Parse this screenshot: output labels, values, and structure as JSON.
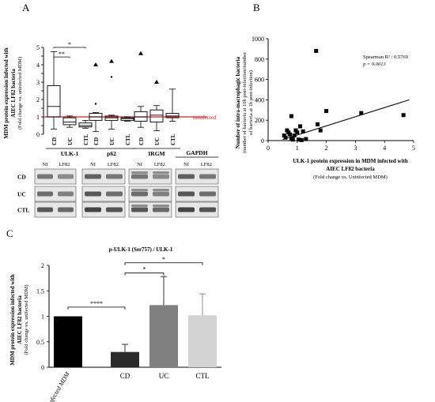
{
  "panels": {
    "a": "A",
    "b": "B",
    "c": "C"
  },
  "colors": {
    "threshold": "#e8161b",
    "bar_uninfected": "#000000",
    "bar_cd": "#2b2b2b",
    "bar_uc": "#808080",
    "bar_ctl": "#d3d3d3",
    "scatter": "#000000"
  },
  "chart_data": [
    {
      "id": "A",
      "type": "box",
      "ylabel": "MDM protein expression infected with",
      "ylabel2": "AIEC LF82 bacteria",
      "ylabel3": "(Fold change vs. uninfected MDM)",
      "ylim": [
        0,
        5
      ],
      "yticks": [
        "0",
        "0.5",
        "1",
        "1.5",
        "2",
        "2.5",
        "3",
        "3.5",
        "4",
        "4.5",
        "5"
      ],
      "reference_line": {
        "value": 1,
        "label": "uninfected"
      },
      "groups": [
        {
          "name": "ULK-1",
          "boxes": [
            {
              "label": "CD",
              "min": 0.3,
              "q1": 1.0,
              "median": 1.6,
              "q3": 2.8,
              "max": 4.75
            },
            {
              "label": "UC",
              "min": 0.4,
              "q1": 0.55,
              "median": 0.7,
              "q3": 0.95,
              "max": 1.05
            },
            {
              "label": "CTL",
              "min": 0.35,
              "q1": 0.42,
              "median": 0.5,
              "q3": 0.65,
              "max": 0.8
            }
          ]
        },
        {
          "name": "p62",
          "boxes": [
            {
              "label": "CD",
              "min": 0.15,
              "q1": 0.8,
              "median": 1.0,
              "q3": 1.2,
              "max": 1.25,
              "outliers": [
                4.0,
                1.75
              ]
            },
            {
              "label": "UC",
              "min": 0.3,
              "q1": 0.8,
              "median": 0.95,
              "q3": 1.05,
              "max": 1.1,
              "outliers": [
                4.2,
                3.3
              ]
            },
            {
              "label": "CTL",
              "min": 0.75,
              "q1": 0.8,
              "median": 0.9,
              "q3": 0.95,
              "max": 1.0
            }
          ]
        },
        {
          "name": "IRGM",
          "boxes": [
            {
              "label": "CD",
              "min": 0.4,
              "q1": 0.75,
              "median": 1.0,
              "q3": 1.3,
              "max": 1.6,
              "outliers": [
                4.65
              ]
            },
            {
              "label": "UC",
              "min": 0.2,
              "q1": 0.7,
              "median": 1.1,
              "q3": 1.4,
              "max": 1.65,
              "outliers": [
                3.0
              ]
            },
            {
              "label": "CTL",
              "min": 0.75,
              "q1": 0.95,
              "median": 1.05,
              "q3": 1.2,
              "max": 2.6
            }
          ]
        }
      ],
      "significance": [
        {
          "label": "**",
          "from": "ULK-1 CD",
          "to": "ULK-1 UC"
        },
        {
          "label": "*",
          "from": "ULK-1 CD",
          "to": "ULK-1 CTL"
        }
      ],
      "blots": {
        "row_labels": [
          "CD",
          "UC",
          "CTL"
        ],
        "lane_labels": [
          "NI",
          "LF82"
        ],
        "proteins": [
          "ULK-1",
          "p62",
          "IRGM",
          "GAPDH"
        ]
      }
    },
    {
      "id": "B",
      "type": "scatter",
      "xlabel": "ULK-1 protein expression in MDM infected with",
      "xlabel2": "AIEC LF82 bacteria",
      "xlabel3": "(Fold change vs. Uninfected MDM)",
      "ylabel": "Number of intra-macrophagic bacteria",
      "ylabel2": "(number of bacteria at 10h post-infection/number",
      "ylabel3": "of bacteria at 1h post-infection)",
      "xlim": [
        0,
        5
      ],
      "ylim": [
        0,
        1000
      ],
      "xticks": [
        "0",
        "1",
        "2",
        "3",
        "4",
        "5"
      ],
      "yticks": [
        "0",
        "200",
        "400",
        "600",
        "800",
        "1000"
      ],
      "annotation": {
        "line1": "Spearman R² : 0.5769",
        "line2": "p = 0.0013"
      },
      "points": [
        {
          "x": 0.55,
          "y": 50
        },
        {
          "x": 0.6,
          "y": 30
        },
        {
          "x": 0.65,
          "y": 100
        },
        {
          "x": 0.7,
          "y": 80
        },
        {
          "x": 0.75,
          "y": 60
        },
        {
          "x": 0.8,
          "y": 20
        },
        {
          "x": 0.8,
          "y": 240
        },
        {
          "x": 0.85,
          "y": 10
        },
        {
          "x": 0.9,
          "y": 50
        },
        {
          "x": 0.95,
          "y": 100
        },
        {
          "x": 1.0,
          "y": 80
        },
        {
          "x": 1.05,
          "y": 10
        },
        {
          "x": 1.1,
          "y": 140
        },
        {
          "x": 1.15,
          "y": 5
        },
        {
          "x": 1.2,
          "y": 90
        },
        {
          "x": 1.3,
          "y": 15
        },
        {
          "x": 1.65,
          "y": 880
        },
        {
          "x": 1.7,
          "y": 160
        },
        {
          "x": 1.8,
          "y": 100
        },
        {
          "x": 2.0,
          "y": 290
        },
        {
          "x": 3.2,
          "y": 270
        },
        {
          "x": 4.65,
          "y": 250
        }
      ],
      "trendline": {
        "x": [
          0.5,
          4.85
        ],
        "y": [
          10,
          400
        ]
      }
    },
    {
      "id": "C",
      "type": "bar",
      "title": "p-ULK-1 (Ser757) / ULK-1",
      "ylabel": "MDM protein expression infected with",
      "ylabel2": "AIEC LF82 bacteria",
      "ylabel3": "(Fold change vs. unifected MDM)",
      "ylim": [
        0,
        2
      ],
      "yticks": [
        "0",
        "0.5",
        "1",
        "1.5",
        "2"
      ],
      "categories": [
        "Uninfected MDM",
        "CD",
        "UC",
        "CTL"
      ],
      "values": [
        1.0,
        0.3,
        1.22,
        1.02
      ],
      "errors": [
        0,
        0.15,
        0.56,
        0.42
      ],
      "significance": [
        {
          "label": "****",
          "from": "Uninfected MDM",
          "to": "CD"
        },
        {
          "label": "*",
          "from": "CD",
          "to": "UC"
        },
        {
          "label": "*",
          "from": "CD",
          "to": "CTL"
        }
      ]
    }
  ]
}
